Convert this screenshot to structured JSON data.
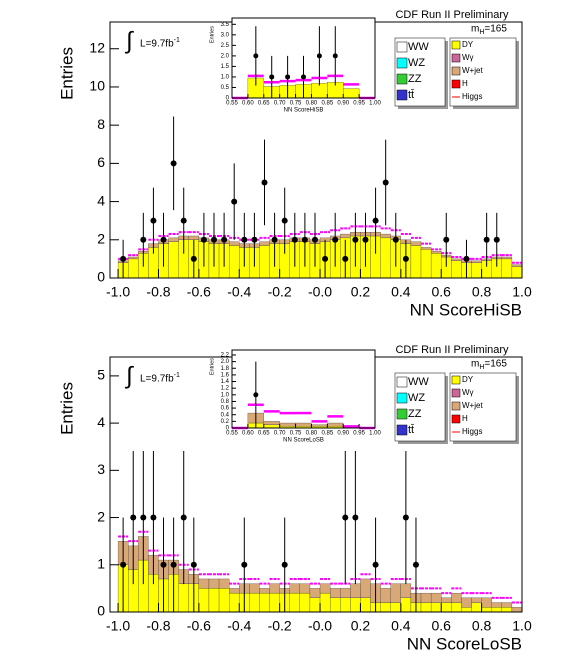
{
  "chart_data": [
    {
      "type": "histogram",
      "title": "CDF Run II Preliminary",
      "x_label": "NN ScoreHiSB",
      "y_label": "Entries",
      "integral": "∫",
      "lumi": "L=9.7fb",
      "lumi_sup": "-1",
      "mass": "m",
      "mass_sub": "H",
      "mass_value": "=165",
      "xlim": [
        -1.04,
        1.0
      ],
      "xticks": [
        {
          "value": -1,
          "label": "-1.0"
        },
        -0.8,
        -0.6,
        -0.4,
        -0.2,
        {
          "value": 0,
          "label": "-0.0"
        },
        0.2,
        0.4,
        0.6,
        0.8,
        {
          "value": 1,
          "label": "1.0"
        }
      ],
      "ylim": [
        0,
        13.4
      ],
      "yticks": [
        0,
        2,
        4,
        6,
        8,
        10,
        12
      ],
      "bins": [
        -1,
        -0.95,
        -0.9,
        -0.85,
        -0.8,
        -0.75,
        -0.7,
        -0.65,
        -0.6,
        -0.55,
        -0.5,
        -0.45,
        -0.4,
        -0.35,
        -0.3,
        -0.25,
        -0.2,
        -0.15,
        -0.1,
        -0.05,
        0,
        0.05,
        0.1,
        0.15,
        0.2,
        0.25,
        0.3,
        0.35,
        0.4,
        0.45,
        0.5,
        0.55,
        0.6,
        0.65,
        0.7,
        0.75,
        0.8,
        0.85,
        0.9,
        0.95,
        1
      ],
      "series": [
        {
          "color": "#ffff00",
          "values": [
            0.8,
            1.0,
            1.3,
            1.6,
            1.8,
            1.9,
            2.0,
            2.0,
            1.9,
            1.8,
            1.8,
            1.7,
            1.6,
            1.6,
            1.7,
            1.8,
            1.8,
            1.9,
            1.9,
            1.8,
            1.9,
            2.0,
            2.1,
            2.2,
            2.2,
            2.2,
            2.1,
            2.0,
            1.8,
            1.7,
            1.5,
            1.3,
            1.1,
            0.9,
            0.8,
            0.8,
            0.9,
            1.0,
            1.0,
            0.6
          ]
        },
        {
          "color": "#d9a877",
          "values": [
            0.1,
            0.1,
            0.1,
            0.2,
            0.2,
            0.2,
            0.2,
            0.2,
            0.2,
            0.2,
            0.2,
            0.2,
            0.2,
            0.2,
            0.2,
            0.2,
            0.2,
            0.2,
            0.2,
            0.2,
            0.2,
            0.2,
            0.2,
            0.2,
            0.2,
            0.2,
            0.2,
            0.2,
            0.2,
            0.2,
            0.1,
            0.1,
            0.1,
            0.1,
            0.1,
            0.1,
            0.1,
            0.1,
            0.1,
            0.1
          ]
        }
      ],
      "signal": {
        "color": "#ff00ff",
        "values": [
          0.1,
          0.1,
          0.1,
          0.2,
          0.2,
          0.2,
          0.2,
          0.2,
          0.2,
          0.2,
          0.2,
          0.2,
          0.2,
          0.2,
          0.2,
          0.2,
          0.2,
          0.2,
          0.3,
          0.3,
          0.3,
          0.3,
          0.3,
          0.3,
          0.3,
          0.3,
          0.3,
          0.3,
          0.3,
          0.2,
          0.2,
          0.1,
          0.1,
          0.1,
          0.1,
          0.1,
          0.1,
          0.1,
          0.1,
          0.1
        ]
      },
      "data": {
        "values": [
          1,
          null,
          2,
          3,
          2,
          6,
          3,
          1,
          2,
          2,
          2,
          4,
          2,
          2,
          5,
          2,
          3,
          2,
          2,
          2,
          1,
          2,
          1,
          2,
          2,
          3,
          5,
          2,
          1,
          null,
          null,
          null,
          2,
          null,
          1,
          null,
          2,
          2,
          null,
          null
        ],
        "errors": [
          1,
          null,
          1.41,
          1.73,
          1.41,
          2.45,
          1.73,
          1,
          1.41,
          1.41,
          1.41,
          2,
          1.41,
          1.41,
          2.24,
          1.41,
          1.73,
          1.41,
          1.41,
          1.41,
          1,
          1.41,
          1,
          1.41,
          1.41,
          1.73,
          2.24,
          1.41,
          1,
          null,
          null,
          null,
          1.41,
          null,
          1,
          null,
          1.41,
          1.41,
          null,
          null
        ]
      },
      "legend": [
        {
          "name": "WW",
          "color": "#ffffff"
        },
        {
          "name": "WZ",
          "color": "#00ffff"
        },
        {
          "name": "ZZ",
          "color": "#33cc33"
        },
        {
          "name": "tt̄",
          "color": "#3333cc"
        },
        {
          "name": "DY",
          "color": "#ffff00"
        },
        {
          "name": "Wγ",
          "color": "#cc6699"
        },
        {
          "name": "W+jet",
          "color": "#d9a877"
        },
        {
          "name": "H",
          "color": "#ff0000"
        },
        {
          "name": "Higgs",
          "color": "#ff0000",
          "marker": "line"
        }
      ],
      "inset": {
        "x_label": "NN ScoreHiSB",
        "y_label": "Entries",
        "xlim": [
          0.55,
          1.0
        ],
        "xticks": [
          0.55,
          {
            "value": 0.6,
            "label": "0.60"
          },
          0.65,
          {
            "value": 0.7,
            "label": "0.70"
          },
          0.75,
          {
            "value": 0.8,
            "label": "0.80"
          },
          0.85,
          {
            "value": 0.9,
            "label": "0.90"
          },
          0.95,
          {
            "value": 1,
            "label": "1.00"
          }
        ],
        "ylim": [
          0,
          3.8
        ],
        "yticks": [
          0,
          0.5,
          {
            "value": 1,
            "label": "1.0"
          },
          1.5,
          {
            "value": 2,
            "label": "2.0"
          },
          2.5,
          {
            "value": 3,
            "label": "3.0"
          },
          3.5
        ],
        "bins": [
          0.55,
          0.6,
          0.65,
          0.7,
          0.75,
          0.8,
          0.85,
          0.9,
          0.95,
          1
        ],
        "series": [
          {
            "color": "#ffff00",
            "values": [
              0,
              0.95,
              0.55,
              0.6,
              0.65,
              0.7,
              0.75,
              0.45,
              0
            ]
          }
        ],
        "signal": {
          "color": "#ff00ff",
          "values": [
            0,
            0.1,
            0.2,
            0.2,
            0.2,
            0.25,
            0.3,
            0.2,
            0
          ]
        },
        "data": {
          "values": [
            null,
            2,
            1,
            1,
            1,
            2,
            2,
            null,
            null
          ],
          "errors": [
            null,
            1.41,
            1,
            1,
            1,
            1.41,
            1.41,
            null,
            null
          ]
        }
      }
    },
    {
      "type": "histogram",
      "title": "CDF Run II Preliminary",
      "x_label": "NN ScoreLoSB",
      "y_label": "Entries",
      "integral": "∫",
      "lumi": "L=9.7fb",
      "lumi_sup": "-1",
      "mass": "m",
      "mass_sub": "H",
      "mass_value": "=165",
      "xlim": [
        -1.04,
        1.0
      ],
      "xticks": [
        {
          "value": -1,
          "label": "-1.0"
        },
        -0.8,
        -0.6,
        -0.4,
        -0.2,
        {
          "value": 0,
          "label": "-0.0"
        },
        0.2,
        0.4,
        0.6,
        0.8,
        {
          "value": 1,
          "label": "1.0"
        }
      ],
      "ylim": [
        0,
        5.4
      ],
      "yticks": [
        0,
        1,
        2,
        3,
        4,
        5
      ],
      "bins": [
        -1,
        -0.95,
        -0.9,
        -0.85,
        -0.8,
        -0.75,
        -0.7,
        -0.65,
        -0.6,
        -0.55,
        -0.5,
        -0.45,
        -0.4,
        -0.35,
        -0.3,
        -0.25,
        -0.2,
        -0.15,
        -0.1,
        -0.05,
        0,
        0.05,
        0.1,
        0.15,
        0.2,
        0.25,
        0.3,
        0.35,
        0.4,
        0.45,
        0.5,
        0.55,
        0.6,
        0.65,
        0.7,
        0.75,
        0.8,
        0.85,
        0.9,
        0.95,
        1
      ],
      "series": [
        {
          "color": "#ffff00",
          "values": [
            1.0,
            0.9,
            1.1,
            0.8,
            0.7,
            0.8,
            0.6,
            0.6,
            0.5,
            0.5,
            0.5,
            0.4,
            0.4,
            0.4,
            0.4,
            0.4,
            0.4,
            0.4,
            0.4,
            0.3,
            0.4,
            0.3,
            0.3,
            0.3,
            0.3,
            0.2,
            0.2,
            0.2,
            0.3,
            0.2,
            0.2,
            0.2,
            0.2,
            0.2,
            0.1,
            0.2,
            0.1,
            0.1,
            0.1,
            0
          ]
        },
        {
          "color": "#d9a877",
          "values": [
            0.5,
            0.5,
            0.5,
            0.4,
            0.4,
            0.3,
            0.3,
            0.2,
            0.2,
            0.2,
            0.2,
            0.1,
            0.2,
            0.2,
            0.1,
            0.2,
            0.1,
            0.2,
            0.2,
            0.2,
            0.2,
            0.2,
            0.2,
            0.3,
            0.4,
            0.4,
            0.3,
            0.4,
            0.3,
            0.2,
            0.2,
            0.2,
            0.1,
            0.2,
            0.2,
            0.1,
            0.2,
            0.1,
            0.1,
            0.1
          ]
        }
      ],
      "signal": {
        "color": "#ff00ff",
        "values": [
          0.1,
          0.1,
          0.1,
          0.1,
          0.1,
          0.1,
          0.1,
          0.1,
          0.1,
          0.1,
          0.1,
          0.1,
          0.1,
          0.1,
          0.1,
          0.1,
          0.1,
          0.1,
          0.1,
          0.1,
          0.1,
          0.1,
          0.1,
          0.1,
          0.1,
          0.1,
          0.1,
          0.1,
          0.1,
          0.1,
          0.1,
          0.1,
          0.1,
          0.1,
          0.1,
          0.1,
          0.1,
          0.1,
          0.1,
          0.1
        ]
      },
      "data": {
        "values": [
          1,
          2,
          2,
          2,
          1,
          1,
          2,
          1,
          null,
          null,
          null,
          null,
          1,
          null,
          null,
          null,
          1,
          null,
          null,
          null,
          null,
          null,
          2,
          2,
          null,
          1,
          null,
          null,
          2,
          1,
          null,
          null,
          null,
          null,
          null,
          null,
          null,
          null,
          null,
          null
        ],
        "errors": [
          1,
          1.41,
          1.41,
          1.41,
          1,
          1,
          1.41,
          1,
          null,
          null,
          null,
          null,
          1,
          null,
          null,
          null,
          1,
          null,
          null,
          null,
          null,
          null,
          1.41,
          1.41,
          null,
          1,
          null,
          null,
          1.41,
          1,
          null,
          null,
          null,
          null,
          null,
          null,
          null,
          null,
          null,
          null
        ]
      },
      "legend": [
        {
          "name": "WW",
          "color": "#ffffff"
        },
        {
          "name": "WZ",
          "color": "#00ffff"
        },
        {
          "name": "ZZ",
          "color": "#33cc33"
        },
        {
          "name": "tt̄",
          "color": "#3333cc"
        },
        {
          "name": "DY",
          "color": "#ffff00"
        },
        {
          "name": "Wγ",
          "color": "#cc6699"
        },
        {
          "name": "W+jet",
          "color": "#d9a877"
        },
        {
          "name": "H",
          "color": "#ff0000"
        },
        {
          "name": "Higgs",
          "color": "#ff0000",
          "marker": "line"
        }
      ],
      "inset": {
        "x_label": "NN ScoreLoSB",
        "y_label": "Entries",
        "xlim": [
          0.55,
          1.0
        ],
        "xticks": [
          0.55,
          {
            "value": 0.6,
            "label": "0.60"
          },
          0.65,
          {
            "value": 0.7,
            "label": "0.70"
          },
          0.75,
          {
            "value": 0.8,
            "label": "0.80"
          },
          0.85,
          {
            "value": 0.9,
            "label": "0.90"
          },
          0.95,
          {
            "value": 1,
            "label": "1.00"
          }
        ],
        "ylim": [
          0,
          2.35
        ],
        "yticks": [
          0,
          0.2,
          0.4,
          0.6,
          0.8,
          {
            "value": 1,
            "label": "1.0"
          },
          1.2,
          1.4,
          1.6,
          1.8,
          {
            "value": 2,
            "label": "2.0"
          },
          2.2
        ],
        "bins": [
          0.55,
          0.6,
          0.65,
          0.7,
          0.75,
          0.8,
          0.85,
          0.9,
          0.95,
          1
        ],
        "series": [
          {
            "color": "#ffff00",
            "values": [
              0,
              0.15,
              0.1,
              0.05,
              0.05,
              0.05,
              0.05,
              0,
              0
            ]
          },
          {
            "color": "#d9a877",
            "values": [
              0,
              0.3,
              0.1,
              0.1,
              0.1,
              0.05,
              0.1,
              0,
              0
            ]
          }
        ],
        "signal": {
          "color": "#ff00ff",
          "values": [
            0,
            0.25,
            0.3,
            0.3,
            0.3,
            0.1,
            0.2,
            0.05,
            0
          ]
        },
        "data": {
          "values": [
            null,
            1,
            null,
            null,
            null,
            null,
            null,
            null,
            null
          ],
          "errors": [
            null,
            1,
            null,
            null,
            null,
            null,
            null,
            null,
            null
          ]
        }
      }
    }
  ]
}
